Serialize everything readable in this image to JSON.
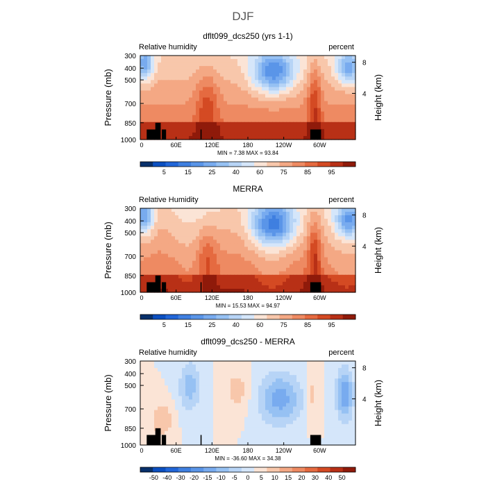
{
  "figure": {
    "title": "DJF"
  },
  "chart_data": [
    {
      "type": "heatmap",
      "title": "dflt099_dcs250 (yrs 1-1)",
      "left_label": "Relative humidity",
      "right_label": "percent",
      "ylabel": "Pressure (mb)",
      "ylabel_right": "Height (km)",
      "y_ticks": [
        "300",
        "400",
        "500",
        "700",
        "850",
        "1000"
      ],
      "y_right_ticks": [
        "8",
        "4"
      ],
      "x_ticks": [
        "0",
        "60E",
        "120E",
        "180",
        "120W",
        "60W"
      ],
      "stats": "MIN =    7.38   MAX =   93.84",
      "min": 7.38,
      "max": 93.84,
      "colorbar_labels": [
        "5",
        "15",
        "25",
        "40",
        "60",
        "75",
        "85",
        "95"
      ],
      "colorbar_colors": [
        "#08306b",
        "#0b4fc0",
        "#2166d8",
        "#3f7fe0",
        "#5a95e8",
        "#78abef",
        "#96c1f3",
        "#b7d4f6",
        "#d5e6fa",
        "#fbe4d6",
        "#f8c7ab",
        "#f4a884",
        "#ee8a62",
        "#e56a40",
        "#d44a23",
        "#b83016",
        "#8f1a0a"
      ]
    },
    {
      "type": "heatmap",
      "title": "MERRA",
      "left_label": "Relative Humidity",
      "right_label": "percent",
      "ylabel": "Pressure (mb)",
      "ylabel_right": "Height (km)",
      "y_ticks": [
        "300",
        "400",
        "500",
        "700",
        "850",
        "1000"
      ],
      "y_right_ticks": [
        "8",
        "4"
      ],
      "x_ticks": [
        "0",
        "60E",
        "120E",
        "180",
        "120W",
        "60W"
      ],
      "stats": "MIN =   15.53   MAX =   94.97",
      "min": 15.53,
      "max": 94.97,
      "colorbar_labels": [
        "5",
        "15",
        "25",
        "40",
        "60",
        "75",
        "85",
        "95"
      ],
      "colorbar_colors": [
        "#08306b",
        "#0b4fc0",
        "#2166d8",
        "#3f7fe0",
        "#5a95e8",
        "#78abef",
        "#96c1f3",
        "#b7d4f6",
        "#d5e6fa",
        "#fbe4d6",
        "#f8c7ab",
        "#f4a884",
        "#ee8a62",
        "#e56a40",
        "#d44a23",
        "#b83016",
        "#8f1a0a"
      ]
    },
    {
      "type": "heatmap",
      "title": "dflt099_dcs250 - MERRA",
      "left_label": "Relative humidity",
      "right_label": "percent",
      "ylabel": "Pressure (mb)",
      "ylabel_right": "Height (km)",
      "y_ticks": [
        "300",
        "400",
        "500",
        "700",
        "850",
        "1000"
      ],
      "y_right_ticks": [
        "8",
        "4"
      ],
      "x_ticks": [
        "0",
        "60E",
        "120E",
        "180",
        "120W",
        "60W"
      ],
      "stats": "MIN =  -36.60   MAX =   34.38",
      "min": -36.6,
      "max": 34.38,
      "colorbar_labels": [
        "-50",
        "-40",
        "-30",
        "-20",
        "-15",
        "-10",
        "-5",
        "0",
        "5",
        "10",
        "15",
        "20",
        "30",
        "40",
        "50"
      ],
      "colorbar_colors": [
        "#08306b",
        "#0b4fc0",
        "#2166d8",
        "#3f7fe0",
        "#5a95e8",
        "#78abef",
        "#96c1f3",
        "#b7d4f6",
        "#d5e6fa",
        "#fbe4d6",
        "#f8c7ab",
        "#f4a884",
        "#ee8a62",
        "#e56a40",
        "#d44a23",
        "#b83016",
        "#8f1a0a"
      ]
    }
  ]
}
